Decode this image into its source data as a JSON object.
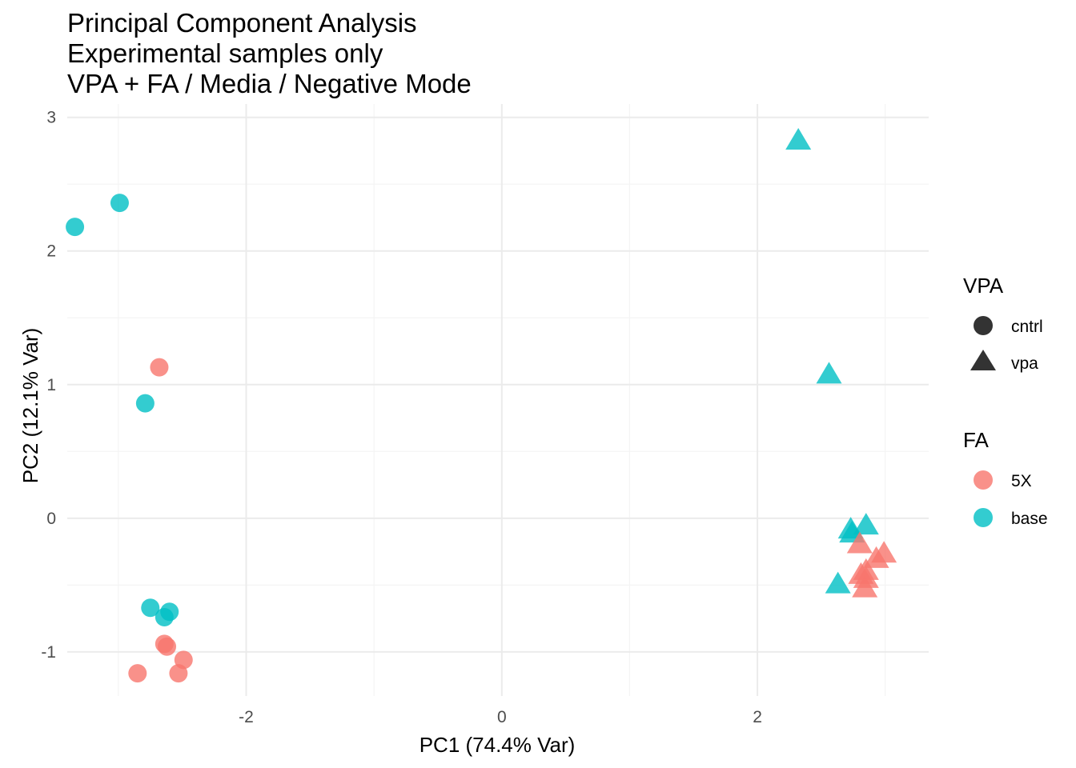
{
  "chart_data": {
    "type": "scatter",
    "title": [
      "Principal Component Analysis",
      "Experimental samples only",
      "VPA + FA / Media / Negative Mode"
    ],
    "xlabel": "PC1 (74.4% Var)",
    "ylabel": "PC2 (12.1% Var)",
    "xlim": [
      -3.4,
      3.34
    ],
    "ylim": [
      -1.33,
      3.1
    ],
    "xticks": [
      -2,
      0,
      2
    ],
    "xtick_labels": [
      "-2",
      "0",
      "2"
    ],
    "yticks": [
      -1,
      0,
      1,
      2,
      3
    ],
    "ytick_labels": [
      "-1",
      "0",
      "1",
      "2",
      "3"
    ],
    "grid": true,
    "colors": {
      "5X": "#F8766D",
      "base": "#00BFC4"
    },
    "legend": {
      "placement": "right",
      "groups": [
        {
          "title": "VPA",
          "items": [
            {
              "label": "cntrl",
              "shape": "circle"
            },
            {
              "label": "vpa",
              "shape": "triangle"
            }
          ]
        },
        {
          "title": "FA",
          "items": [
            {
              "label": "5X",
              "color": "#F8766D"
            },
            {
              "label": "base",
              "color": "#00BFC4"
            }
          ]
        }
      ]
    },
    "series": [
      {
        "FA": "base",
        "VPA": "cntrl",
        "points": [
          [
            -3.34,
            2.18
          ],
          [
            -2.99,
            2.36
          ],
          [
            -2.79,
            0.86
          ],
          [
            -2.75,
            -0.67
          ],
          [
            -2.6,
            -0.7
          ],
          [
            -2.64,
            -0.74
          ]
        ]
      },
      {
        "FA": "5X",
        "VPA": "cntrl",
        "points": [
          [
            -2.68,
            1.13
          ],
          [
            -2.64,
            -0.94
          ],
          [
            -2.62,
            -0.96
          ],
          [
            -2.49,
            -1.06
          ],
          [
            -2.85,
            -1.16
          ],
          [
            -2.53,
            -1.16
          ]
        ]
      },
      {
        "FA": "base",
        "VPA": "vpa",
        "points": [
          [
            2.32,
            2.82
          ],
          [
            2.56,
            1.07
          ],
          [
            2.73,
            -0.09
          ],
          [
            2.85,
            -0.06
          ],
          [
            2.74,
            -0.12
          ],
          [
            2.63,
            -0.5
          ]
        ]
      },
      {
        "FA": "5X",
        "VPA": "vpa",
        "points": [
          [
            2.8,
            -0.2
          ],
          [
            2.99,
            -0.27
          ],
          [
            2.93,
            -0.31
          ],
          [
            2.85,
            -0.4
          ],
          [
            2.81,
            -0.43
          ],
          [
            2.85,
            -0.46
          ],
          [
            2.84,
            -0.53
          ]
        ]
      }
    ]
  }
}
